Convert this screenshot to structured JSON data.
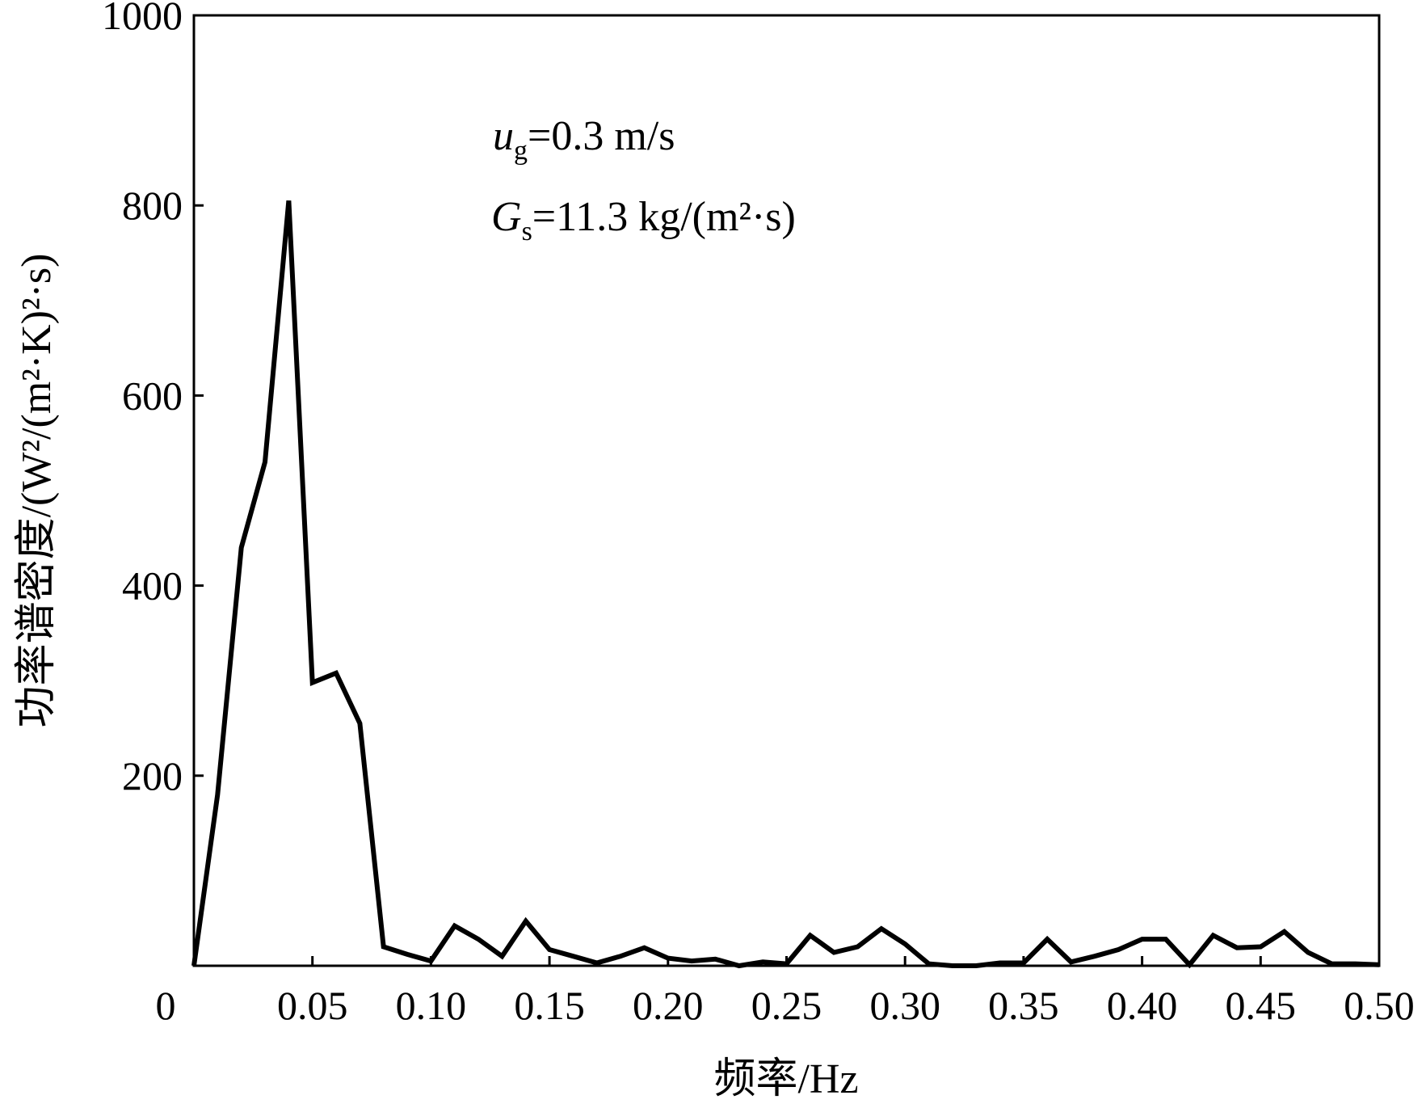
{
  "chart_data": {
    "type": "line",
    "xlabel": "频率/Hz",
    "ylabel": "功率谱密度/(W²/(m²·K)²·s)",
    "xlim": [
      0,
      0.5
    ],
    "ylim": [
      0,
      1000
    ],
    "x_ticks": [
      0,
      0.05,
      0.1,
      0.15,
      0.2,
      0.25,
      0.3,
      0.35,
      0.4,
      0.45,
      0.5
    ],
    "x_tick_labels": [
      "0",
      "0.05",
      "0.10",
      "0.15",
      "0.20",
      "0.25",
      "0.30",
      "0.35",
      "0.40",
      "0.45",
      "0.50"
    ],
    "y_ticks": [
      200,
      400,
      600,
      800,
      1000
    ],
    "y_tick_labels": [
      "200",
      "400",
      "600",
      "800",
      "1000"
    ],
    "grid": false,
    "annotations": [
      {
        "symbol": "u",
        "subscript": "g",
        "text": "=0.3 m/s"
      },
      {
        "symbol": "G",
        "subscript": "s",
        "text": "=11.3 kg/(m²·s)"
      }
    ],
    "series": [
      {
        "color": "#000000",
        "x": [
          0,
          0.01,
          0.02,
          0.03,
          0.04,
          0.05,
          0.06,
          0.07,
          0.08,
          0.09,
          0.1,
          0.11,
          0.12,
          0.13,
          0.14,
          0.15,
          0.16,
          0.17,
          0.18,
          0.19,
          0.2,
          0.21,
          0.22,
          0.23,
          0.24,
          0.25,
          0.26,
          0.27,
          0.28,
          0.29,
          0.3,
          0.31,
          0.32,
          0.33,
          0.34,
          0.35,
          0.36,
          0.37,
          0.38,
          0.39,
          0.4,
          0.41,
          0.42,
          0.43,
          0.44,
          0.45,
          0.46,
          0.47,
          0.48,
          0.49,
          0.5
        ],
        "y": [
          0,
          180,
          440,
          530,
          805,
          298,
          308,
          255,
          20,
          12,
          5,
          42,
          28,
          10,
          47,
          17,
          10,
          3,
          10,
          19,
          8,
          5,
          7,
          0,
          4,
          2,
          32,
          14,
          20,
          39,
          23,
          2,
          0,
          0,
          3,
          3,
          28,
          4,
          10,
          17,
          28,
          28,
          1,
          32,
          19,
          20,
          36,
          14,
          2,
          2,
          1
        ]
      }
    ]
  }
}
